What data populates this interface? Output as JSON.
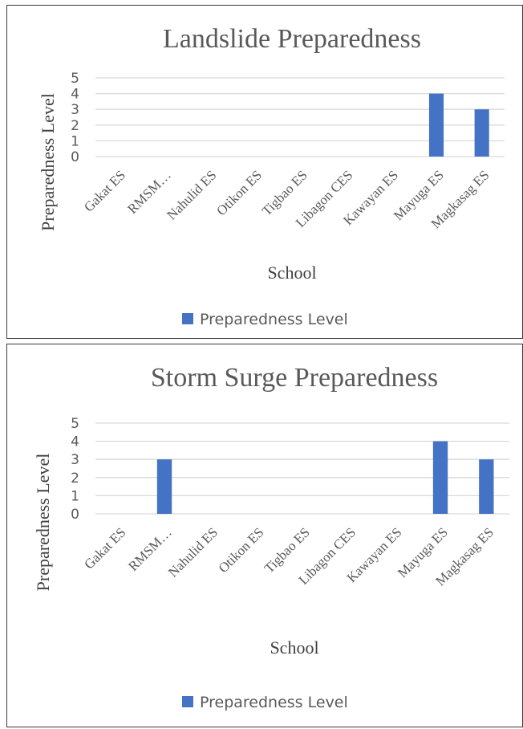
{
  "chart_data": [
    {
      "type": "bar",
      "title": "Landslide Preparedness",
      "xlabel": "School",
      "ylabel": "Preparedness Level",
      "categories": [
        "Gakat ES",
        "RMSM…",
        "Nahulid ES",
        "Otikon ES",
        "Tigbao ES",
        "Libagon CES",
        "Kawayan ES",
        "Mayuga ES",
        "Magkasag ES"
      ],
      "series": [
        {
          "name": "Preparedness Level",
          "values": [
            0,
            0,
            0,
            0,
            0,
            0,
            0,
            4,
            3
          ]
        }
      ],
      "ylim": [
        0,
        5
      ],
      "yticks": [
        "0",
        "1",
        "2",
        "3",
        "4",
        "5"
      ],
      "grid": true,
      "legend": "bottom",
      "color": "#4472C4"
    },
    {
      "type": "bar",
      "title": "Storm Surge Preparedness",
      "xlabel": "School",
      "ylabel": "Preparedness Level",
      "categories": [
        "Gakat ES",
        "RMSM…",
        "Nahulid ES",
        "Otikon ES",
        "Tigbao ES",
        "Libagon CES",
        "Kawayan ES",
        "Mayuga ES",
        "Magkasag ES"
      ],
      "series": [
        {
          "name": "Preparedness Level",
          "values": [
            0,
            3,
            0,
            0,
            0,
            0,
            0,
            4,
            3
          ]
        }
      ],
      "ylim": [
        0,
        5
      ],
      "yticks": [
        "0",
        "1",
        "2",
        "3",
        "4",
        "5"
      ],
      "grid": true,
      "legend": "bottom",
      "color": "#4472C4"
    }
  ]
}
